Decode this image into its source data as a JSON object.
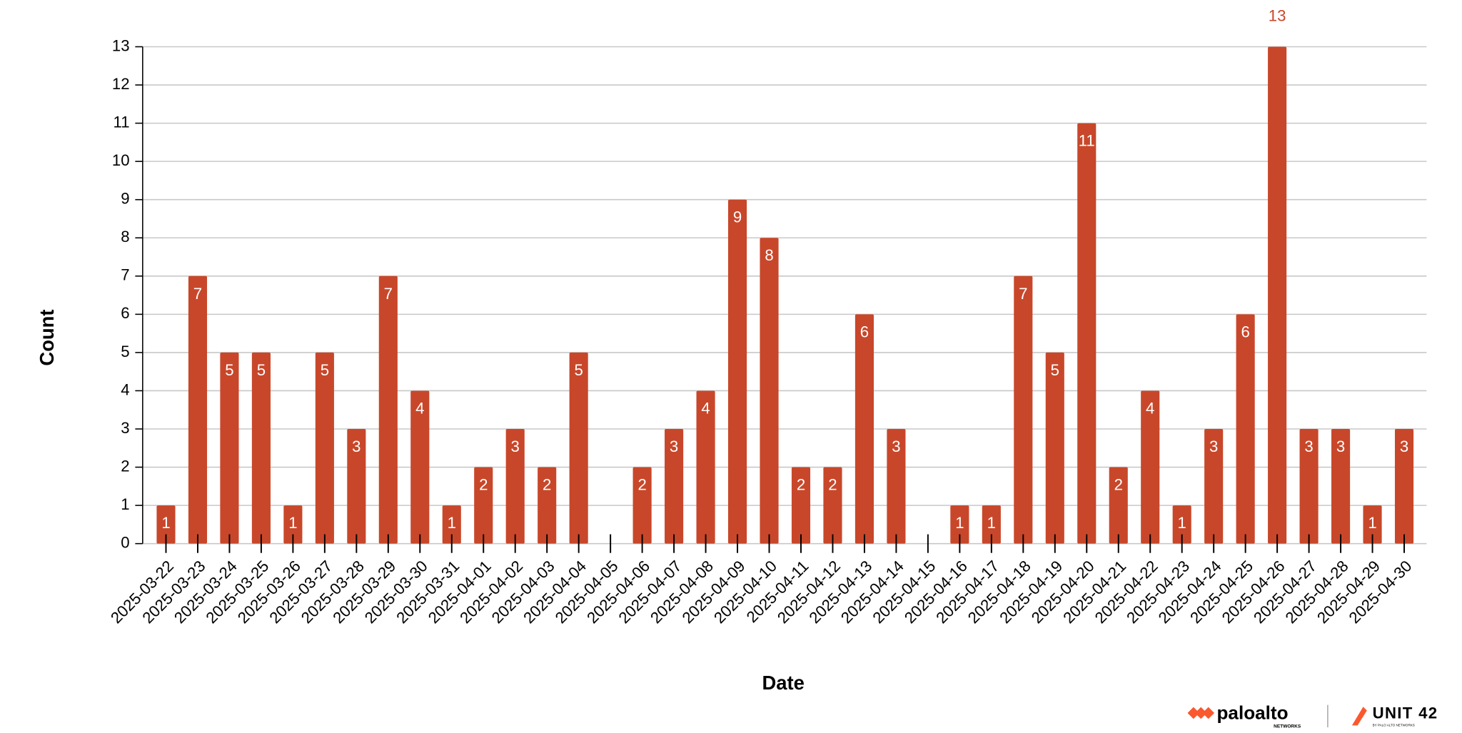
{
  "chart_data": {
    "type": "bar",
    "x_label": "Date",
    "y_label": "Count",
    "categories": [
      "2025-03-22",
      "2025-03-23",
      "2025-03-24",
      "2025-03-25",
      "2025-03-26",
      "2025-03-27",
      "2025-03-28",
      "2025-03-29",
      "2025-03-30",
      "2025-03-31",
      "2025-04-01",
      "2025-04-02",
      "2025-04-03",
      "2025-04-04",
      "2025-04-05",
      "2025-04-06",
      "2025-04-07",
      "2025-04-08",
      "2025-04-09",
      "2025-04-10",
      "2025-04-11",
      "2025-04-12",
      "2025-04-13",
      "2025-04-14",
      "2025-04-15",
      "2025-04-16",
      "2025-04-17",
      "2025-04-18",
      "2025-04-19",
      "2025-04-20",
      "2025-04-21",
      "2025-04-22",
      "2025-04-23",
      "2025-04-24",
      "2025-04-25",
      "2025-04-26",
      "2025-04-27",
      "2025-04-28",
      "2025-04-29",
      "2025-04-30"
    ],
    "values": [
      1,
      7,
      5,
      5,
      1,
      5,
      3,
      7,
      4,
      1,
      2,
      3,
      2,
      5,
      0,
      2,
      3,
      4,
      9,
      8,
      2,
      2,
      6,
      3,
      0,
      1,
      1,
      7,
      5,
      11,
      2,
      4,
      1,
      3,
      6,
      13,
      3,
      3,
      1,
      3
    ],
    "color": "#c8472a",
    "ylim": [
      0,
      13
    ],
    "yticks": [
      0,
      1,
      2,
      3,
      4,
      5,
      6,
      7,
      8,
      9,
      10,
      11,
      12,
      13
    ],
    "grid": true
  },
  "branding": {
    "brand": "paloalto",
    "brand_sub": "NETWORKS",
    "unit": "UNIT 42",
    "unit_sub": "BY PALO ALTO NETWORKS"
  }
}
